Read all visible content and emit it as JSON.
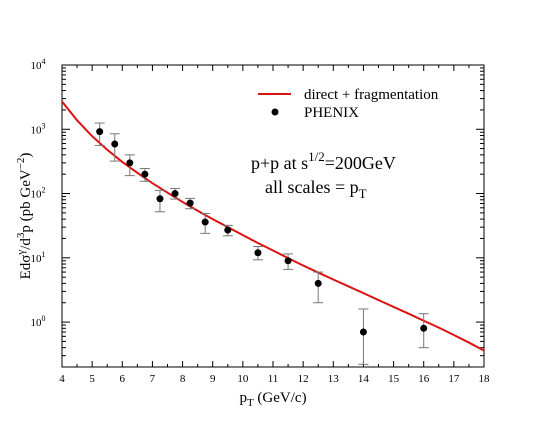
{
  "chart_data": {
    "type": "scatter",
    "x_axis": {
      "label_main": "p",
      "label_sub": "T",
      "label_units": " (GeV/c)",
      "range": [
        4,
        18
      ],
      "ticks": [
        "4",
        "5",
        "6",
        "7",
        "8",
        "9",
        "10",
        "11",
        "12",
        "13",
        "14",
        "15",
        "16",
        "17",
        "18"
      ]
    },
    "y_axis": {
      "scale": "log",
      "range": [
        0.2,
        10000
      ],
      "label_parts": {
        "E": "Ed",
        "sigma": "σ",
        "sup_gamma": "γ",
        "mid": "/d",
        "sup_3": "3",
        "p_units": "p (pb GeV",
        "sup_minus2": "−2",
        "close": ")"
      },
      "ticks": [
        {
          "value": 1,
          "base": "10",
          "exp": "0"
        },
        {
          "value": 10,
          "base": "10",
          "exp": "1"
        },
        {
          "value": 100,
          "base": "10",
          "exp": "2"
        },
        {
          "value": 1000,
          "base": "10",
          "exp": "3"
        },
        {
          "value": 10000,
          "base": "10",
          "exp": "4"
        }
      ]
    },
    "series": [
      {
        "name": "direct + fragmentation",
        "kind": "line",
        "color": "#dd1111",
        "points": [
          [
            4.0,
            2700
          ],
          [
            4.5,
            1380
          ],
          [
            5.0,
            780
          ],
          [
            5.5,
            480
          ],
          [
            6.0,
            310
          ],
          [
            6.5,
            210
          ],
          [
            7.0,
            145
          ],
          [
            7.5,
            103
          ],
          [
            8.0,
            74
          ],
          [
            8.5,
            54
          ],
          [
            9.0,
            40
          ],
          [
            9.5,
            30
          ],
          [
            10.0,
            22.5
          ],
          [
            10.5,
            17
          ],
          [
            11.0,
            13
          ],
          [
            11.5,
            9.9
          ],
          [
            12.0,
            7.6
          ],
          [
            12.5,
            5.9
          ],
          [
            13.0,
            4.6
          ],
          [
            13.5,
            3.6
          ],
          [
            14.0,
            2.82
          ],
          [
            14.5,
            2.2
          ],
          [
            15.0,
            1.72
          ],
          [
            15.5,
            1.35
          ],
          [
            16.0,
            1.05
          ],
          [
            16.5,
            0.82
          ],
          [
            17.0,
            0.63
          ],
          [
            17.5,
            0.48
          ],
          [
            18.0,
            0.36
          ]
        ]
      },
      {
        "name": "PHENIX",
        "kind": "points",
        "color": "#000000",
        "points": [
          {
            "x": 5.25,
            "y": 920,
            "ylo": 560,
            "yhi": 1250
          },
          {
            "x": 5.75,
            "y": 590,
            "ylo": 320,
            "yhi": 850
          },
          {
            "x": 6.25,
            "y": 300,
            "ylo": 190,
            "yhi": 400
          },
          {
            "x": 6.75,
            "y": 200,
            "ylo": 155,
            "yhi": 245
          },
          {
            "x": 7.25,
            "y": 83,
            "ylo": 52,
            "yhi": 112
          },
          {
            "x": 7.75,
            "y": 100,
            "ylo": 82,
            "yhi": 120
          },
          {
            "x": 8.25,
            "y": 71,
            "ylo": 58,
            "yhi": 84
          },
          {
            "x": 8.75,
            "y": 36,
            "ylo": 24,
            "yhi": 49
          },
          {
            "x": 9.5,
            "y": 27,
            "ylo": 22,
            "yhi": 32
          },
          {
            "x": 10.5,
            "y": 12,
            "ylo": 9.3,
            "yhi": 15
          },
          {
            "x": 11.5,
            "y": 9,
            "ylo": 6.6,
            "yhi": 11.5
          },
          {
            "x": 12.5,
            "y": 4,
            "ylo": 2,
            "yhi": 6
          },
          {
            "x": 14.0,
            "y": 0.7,
            "ylo": 0.22,
            "yhi": 1.6
          },
          {
            "x": 16.0,
            "y": 0.8,
            "ylo": 0.4,
            "yhi": 1.35
          }
        ]
      }
    ],
    "legend": {
      "placement": "top-right",
      "line_label": "direct + fragmentation",
      "point_label": "PHENIX"
    },
    "annotation": {
      "line1_pre": "p+p at s",
      "line1_sup": "1/2",
      "line1_post": "=200GeV",
      "line2_pre": "all scales = p",
      "line2_sub": "T"
    },
    "grid": false
  }
}
